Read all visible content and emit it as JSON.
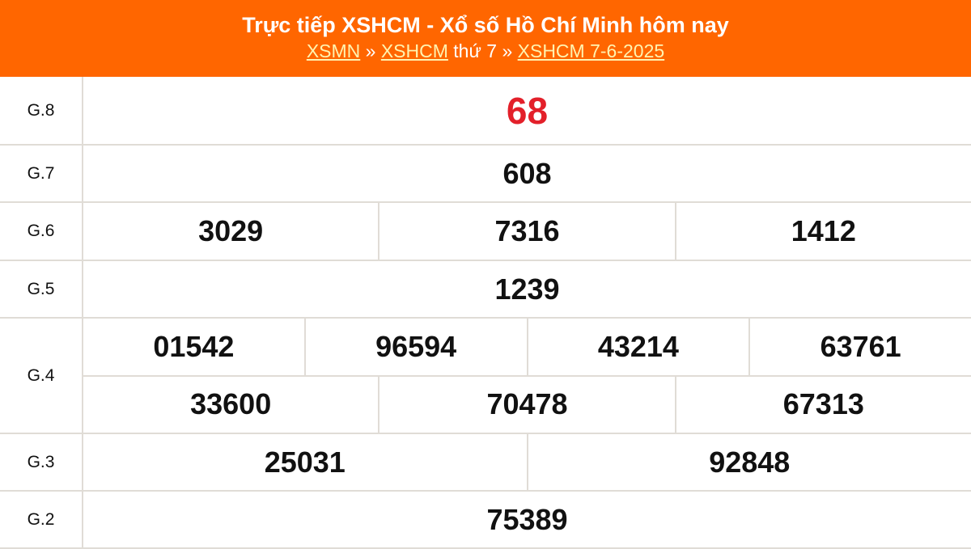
{
  "header": {
    "title": "Trực tiếp XSHCM - Xổ số Hồ Chí Minh hôm nay",
    "breadcrumb": {
      "link1": "XSMN",
      "sep1": " » ",
      "link2": "XSHCM",
      "text": " thứ 7",
      "sep2": " » ",
      "link3": "XSHCM 7-6-2025"
    }
  },
  "colors": {
    "header_bg": "#ff6600",
    "special": "#e3202a",
    "border": "#e0dcd6"
  },
  "prizes": [
    {
      "label": "G.8",
      "rows": [
        [
          "68"
        ]
      ]
    },
    {
      "label": "G.7",
      "rows": [
        [
          "608"
        ]
      ]
    },
    {
      "label": "G.6",
      "rows": [
        [
          "3029",
          "7316",
          "1412"
        ]
      ]
    },
    {
      "label": "G.5",
      "rows": [
        [
          "1239"
        ]
      ]
    },
    {
      "label": "G.4",
      "rows": [
        [
          "01542",
          "96594",
          "43214",
          "63761"
        ],
        [
          "33600",
          "70478",
          "67313"
        ]
      ]
    },
    {
      "label": "G.3",
      "rows": [
        [
          "25031",
          "92848"
        ]
      ]
    },
    {
      "label": "G.2",
      "rows": [
        [
          "75389"
        ]
      ]
    }
  ]
}
